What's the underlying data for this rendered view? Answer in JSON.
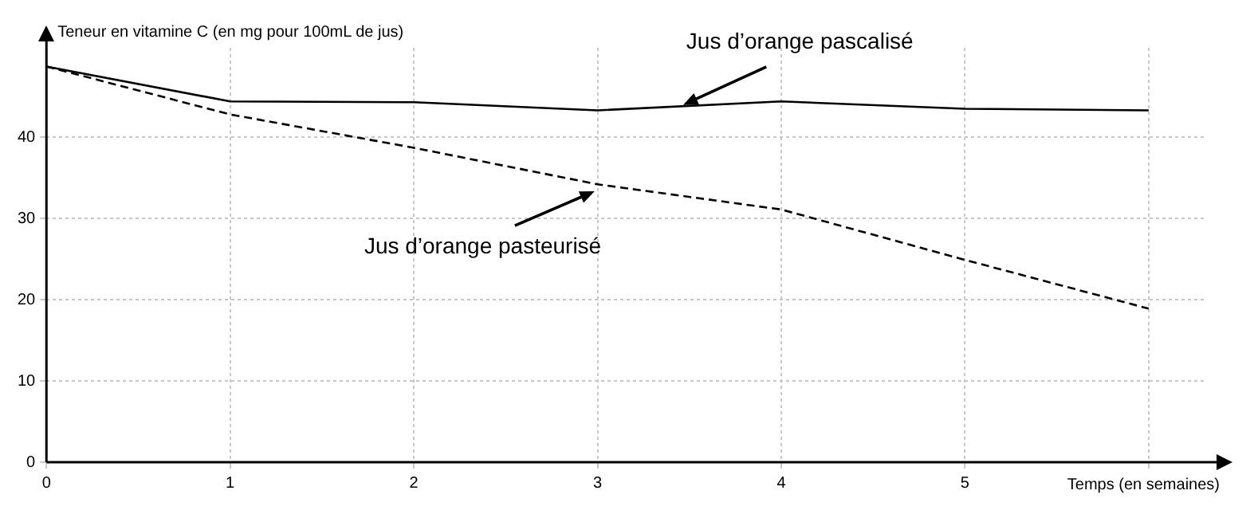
{
  "chart_data": {
    "type": "line",
    "ylabel": "Teneur en vitamine C (en mg pour 100mL de jus)",
    "xlabel": "Temps (en semaines)",
    "x": [
      0,
      1,
      2,
      3,
      4,
      5,
      6
    ],
    "series": [
      {
        "color": "#000000",
        "line_style": "solid",
        "values": [
          48.7,
          44.4,
          44.3,
          43.3,
          44.4,
          43.5,
          43.3
        ]
      },
      {
        "color": "#000000",
        "line_style": "dashed",
        "values": [
          48.7,
          42.8,
          38.7,
          34.2,
          31.1,
          24.9,
          18.9
        ]
      }
    ],
    "xlim": [
      0,
      6.3
    ],
    "ylim": [
      0,
      51
    ],
    "xticks": [
      0,
      1,
      2,
      3,
      4,
      5,
      {
        "value": 6,
        "label": null
      }
    ],
    "yticks": [
      0,
      10,
      20,
      30,
      40
    ],
    "grid": true,
    "legend": false,
    "marker": "none",
    "annotations": [
      {
        "text": "Jus d’orange pascalisé",
        "x": 3.45,
        "y": 43.8
      },
      {
        "text": "Jus d’orange pasteurisé",
        "x": 3,
        "y": 33.5
      }
    ]
  }
}
